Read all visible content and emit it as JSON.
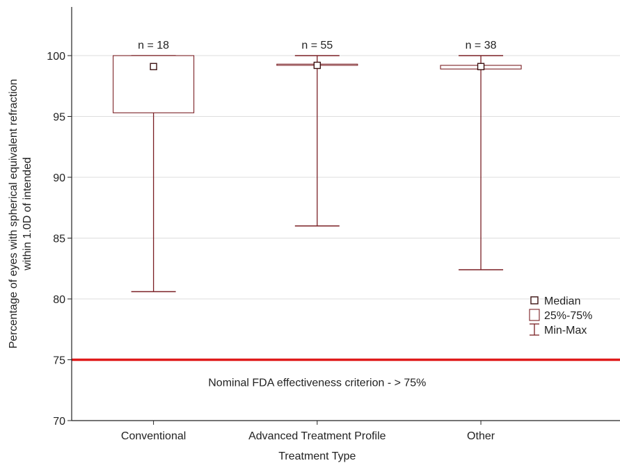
{
  "chart_data": {
    "type": "boxplot",
    "title": "",
    "xlabel": "Treatment Type",
    "ylabel_lines": [
      "Percentage of eyes with spherical equivalent refraction",
      "within 1.0D of intended"
    ],
    "ylim": [
      70,
      104
    ],
    "yticks": [
      70,
      75,
      80,
      85,
      90,
      95,
      100
    ],
    "grid": "horizontal",
    "categories": [
      "Conventional",
      "Advanced Treatment Profile",
      "Other"
    ],
    "series": [
      {
        "category": "Conventional",
        "n_label": "n = 18",
        "min": 80.6,
        "q1": 95.3,
        "median": 99.1,
        "q3": 100.0,
        "max": 100.0
      },
      {
        "category": "Advanced Treatment Profile",
        "n_label": "n = 55",
        "min": 86.0,
        "q1": 99.2,
        "median": 99.2,
        "q3": 99.3,
        "max": 100.0
      },
      {
        "category": "Other",
        "n_label": "n = 38",
        "min": 82.4,
        "q1": 98.9,
        "median": 99.1,
        "q3": 99.2,
        "max": 100.0
      }
    ],
    "reference_line": {
      "value": 75,
      "label": "Nominal FDA effectiveness criterion - > 75%",
      "color": "#e01b1b"
    },
    "legend": {
      "placement": "right",
      "items": [
        {
          "symbol": "median",
          "label": "Median"
        },
        {
          "symbol": "box",
          "label": "25%-75%"
        },
        {
          "symbol": "whisker",
          "label": "Min-Max"
        }
      ]
    },
    "colors": {
      "box": "#7a1f24",
      "grid": "#dddddd",
      "axis": "#222222"
    }
  }
}
